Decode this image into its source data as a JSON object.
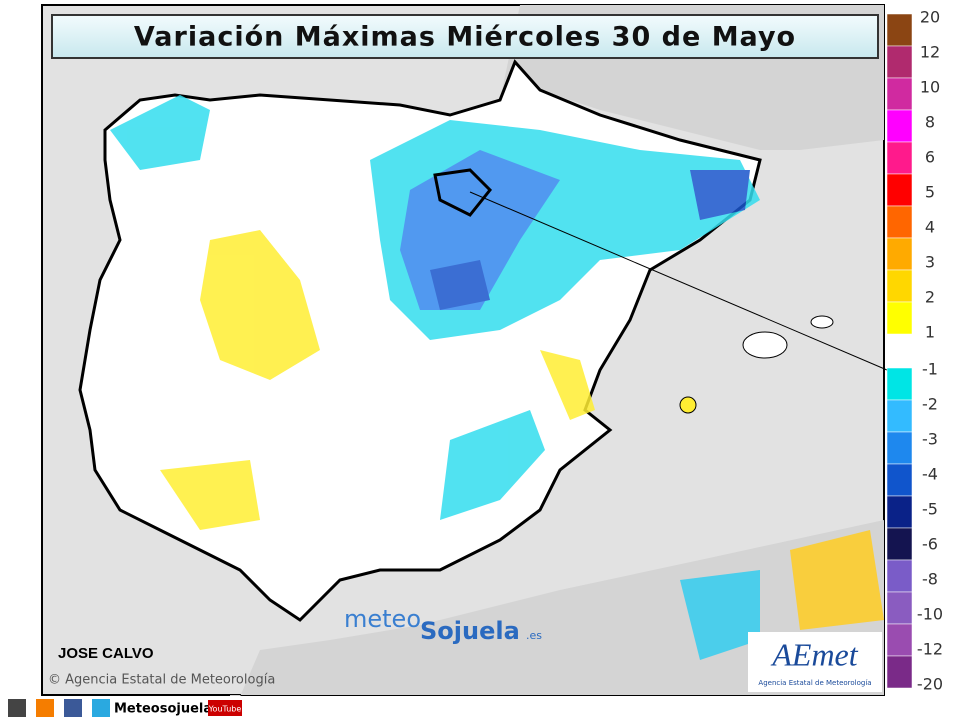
{
  "header": {
    "title": "Variación Máximas  Miércoles 30 de Mayo"
  },
  "legend": {
    "items": [
      {
        "label": 20,
        "color": "#8b4513"
      },
      {
        "label": 12,
        "color": "#b02a6e"
      },
      {
        "label": 10,
        "color": "#d02aa0"
      },
      {
        "label": 8,
        "color": "#ff00ff"
      },
      {
        "label": 6,
        "color": "#ff1a8c"
      },
      {
        "label": 5,
        "color": "#ff0000"
      },
      {
        "label": 4,
        "color": "#ff6600"
      },
      {
        "label": 3,
        "color": "#ffaa00"
      },
      {
        "label": 2,
        "color": "#ffd700"
      },
      {
        "label": 1,
        "color": "#ffff00"
      },
      {
        "label": -1,
        "color": "#00e5e5"
      },
      {
        "label": -2,
        "color": "#33bbff"
      },
      {
        "label": -3,
        "color": "#1e88ee"
      },
      {
        "label": -4,
        "color": "#1055cc"
      },
      {
        "label": -5,
        "color": "#0a2288"
      },
      {
        "label": -6,
        "color": "#141450"
      },
      {
        "label": -8,
        "color": "#7a5cc8"
      },
      {
        "label": -10,
        "color": "#8a5cc0"
      },
      {
        "label": -12,
        "color": "#9a4cb0"
      },
      {
        "label": -20,
        "color": "#7a2a88"
      }
    ]
  },
  "credits": {
    "author": "JOSE CALVO",
    "agency": "© Agencia Estatal de Meteorología"
  },
  "watermark": {
    "part1": "meteo",
    "part2": "Sojuela",
    "part3": ".es"
  },
  "logo": {
    "text": "AEmet",
    "subtitle": "Agencia Estatal de Meteorología"
  },
  "footer": {
    "social": "Meteosojuela",
    "youtube": "YouTube"
  }
}
